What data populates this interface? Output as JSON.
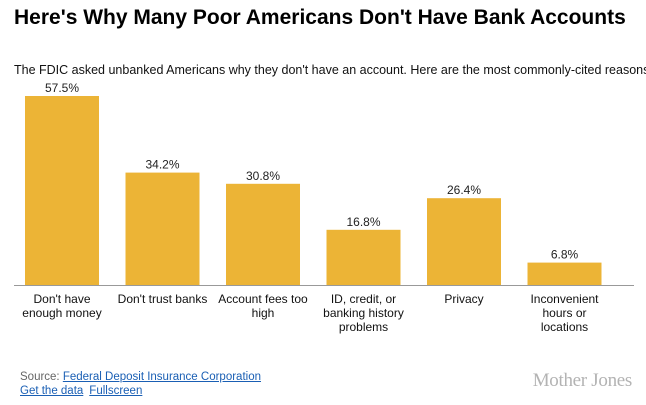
{
  "header": {
    "title": "Here's Why Many Poor Americans Don't Have Bank Accounts",
    "subtitle": "The FDIC asked unbanked Americans why they don't have an account. Here are the most commonly-cited reasons."
  },
  "chart_data": {
    "type": "bar",
    "title": "Here's Why Many Poor Americans Don't Have Bank Accounts",
    "subtitle": "The FDIC asked unbanked Americans why they don't have an account. Here are the most commonly-cited reasons.",
    "categories": [
      "Don't have enough money",
      "Don't trust banks",
      "Account fees too high",
      "ID, credit, or banking history problems",
      "Privacy",
      "Inconvenient hours or locations"
    ],
    "values": [
      57.5,
      34.2,
      30.8,
      16.8,
      26.4,
      6.8
    ],
    "value_labels": [
      "57.5%",
      "34.2%",
      "30.8%",
      "16.8%",
      "26.4%",
      "6.8%"
    ],
    "xlabel": "",
    "ylabel": "",
    "ylim": [
      0,
      57.5
    ],
    "grid": false,
    "color": "#ecb436"
  },
  "footer": {
    "source_prefix": "Source: ",
    "source_link": "Federal Deposit Insurance Corporation",
    "get_data": "Get the data",
    "fullscreen": "Fullscreen"
  },
  "brand": {
    "logo_text": "Mother Jones"
  }
}
